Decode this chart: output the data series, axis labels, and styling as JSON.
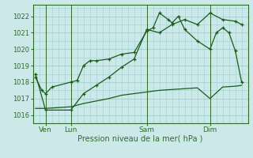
{
  "bg_color": "#cce8e8",
  "grid_color": "#a8d4d4",
  "line_color": "#1a5c1a",
  "axis_color": "#2d6e2d",
  "xlabel": "Pression niveau de la mer( hPa )",
  "ylim": [
    1015.5,
    1022.7
  ],
  "yticks": [
    1016,
    1017,
    1018,
    1019,
    1020,
    1021,
    1022
  ],
  "xtick_labels": [
    "Ven",
    "Lun",
    "Sam",
    "Dim"
  ],
  "xtick_positions": [
    1,
    3,
    9,
    14
  ],
  "x_vlines": [
    1,
    3,
    9,
    14
  ],
  "xlim": [
    0,
    17
  ],
  "series1_x": [
    0.2,
    0.7,
    1.0,
    1.5,
    3.0,
    3.5,
    4.0,
    4.5,
    5.0,
    6.0,
    7.0,
    8.0,
    9.0,
    9.5,
    10.0,
    10.7,
    11.0,
    11.5,
    12.0,
    13.0,
    14.0,
    14.5,
    15.0,
    15.5,
    16.0,
    16.5
  ],
  "series1_y": [
    1018.3,
    1017.5,
    1017.3,
    1017.7,
    1018.0,
    1018.1,
    1019.0,
    1019.3,
    1019.3,
    1019.4,
    1019.7,
    1019.8,
    1021.1,
    1021.3,
    1022.2,
    1021.8,
    1021.6,
    1022.0,
    1021.2,
    1020.5,
    1020.0,
    1021.0,
    1021.3,
    1021.0,
    1019.9,
    1018.0
  ],
  "series2_x": [
    0.2,
    1.0,
    3.0,
    4.0,
    5.0,
    6.0,
    7.0,
    8.0,
    9.0,
    10.0,
    11.0,
    12.0,
    13.0,
    14.0,
    15.0,
    16.0,
    16.5
  ],
  "series2_y": [
    1018.5,
    1016.3,
    1016.3,
    1017.3,
    1017.8,
    1018.3,
    1018.9,
    1019.4,
    1021.2,
    1021.0,
    1021.5,
    1021.8,
    1021.5,
    1022.2,
    1021.8,
    1021.7,
    1021.5
  ],
  "series3_x": [
    0.2,
    1.0,
    3.0,
    4.0,
    5.0,
    6.0,
    7.0,
    8.0,
    9.0,
    10.0,
    11.0,
    12.0,
    13.0,
    14.0,
    15.0,
    16.0,
    16.5
  ],
  "series3_y": [
    1016.4,
    1016.4,
    1016.5,
    1016.7,
    1016.85,
    1017.0,
    1017.2,
    1017.3,
    1017.4,
    1017.5,
    1017.55,
    1017.6,
    1017.65,
    1017.0,
    1017.7,
    1017.75,
    1017.8
  ],
  "series4_x": [
    16.0,
    16.5
  ],
  "series4_y": [
    1018.0,
    1017.7
  ]
}
